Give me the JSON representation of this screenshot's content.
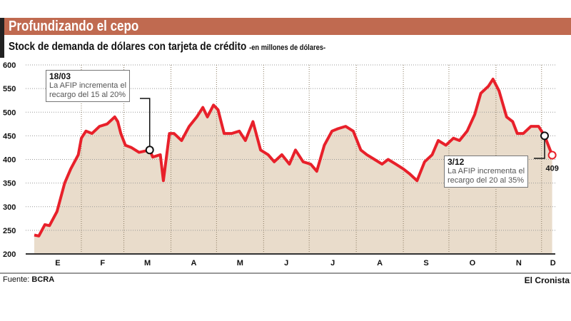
{
  "title": "Profundizando el cepo",
  "subtitle": "Stock de demanda de dólares con tarjeta de crédito",
  "unit": "-en millones de dólares-",
  "footer": {
    "source_label": "Fuente:",
    "source": "BCRA",
    "brand": "El Cronista"
  },
  "colors": {
    "header": "#c06a50",
    "line": "#e8202a",
    "fill": "#e9dccb"
  },
  "chart_data": {
    "type": "area",
    "ylim": [
      200,
      600
    ],
    "yticks": [
      200,
      250,
      300,
      350,
      400,
      450,
      500,
      550,
      600
    ],
    "xticks": [
      "E",
      "F",
      "M",
      "A",
      "M",
      "J",
      "J",
      "A",
      "S",
      "O",
      "N",
      "D"
    ],
    "grid": true,
    "points": [
      [
        "01/01",
        240
      ],
      [
        "04/01",
        238
      ],
      [
        "08/01",
        262
      ],
      [
        "11/01",
        260
      ],
      [
        "16/01",
        290
      ],
      [
        "21/01",
        350
      ],
      [
        "25/01",
        380
      ],
      [
        "30/01",
        410
      ],
      [
        "01/02",
        445
      ],
      [
        "04/02",
        460
      ],
      [
        "08/02",
        455
      ],
      [
        "13/02",
        470
      ],
      [
        "18/02",
        475
      ],
      [
        "23/02",
        490
      ],
      [
        "25/02",
        480
      ],
      [
        "27/02",
        455
      ],
      [
        "02/03",
        430
      ],
      [
        "06/03",
        425
      ],
      [
        "11/03",
        415
      ],
      [
        "18/03",
        420
      ],
      [
        "20/03",
        405
      ],
      [
        "25/03",
        410
      ],
      [
        "27/03",
        355
      ],
      [
        "31/03",
        455
      ],
      [
        "03/04",
        455
      ],
      [
        "08/04",
        440
      ],
      [
        "13/04",
        470
      ],
      [
        "18/04",
        490
      ],
      [
        "22/04",
        510
      ],
      [
        "25/04",
        490
      ],
      [
        "29/04",
        515
      ],
      [
        "02/05",
        505
      ],
      [
        "06/05",
        455
      ],
      [
        "11/05",
        455
      ],
      [
        "16/05",
        460
      ],
      [
        "20/05",
        440
      ],
      [
        "25/05",
        480
      ],
      [
        "30/05",
        420
      ],
      [
        "04/06",
        410
      ],
      [
        "08/06",
        395
      ],
      [
        "13/06",
        410
      ],
      [
        "18/06",
        390
      ],
      [
        "22/06",
        420
      ],
      [
        "27/06",
        395
      ],
      [
        "02/07",
        390
      ],
      [
        "06/07",
        375
      ],
      [
        "11/07",
        430
      ],
      [
        "16/07",
        460
      ],
      [
        "20/07",
        465
      ],
      [
        "25/07",
        470
      ],
      [
        "30/07",
        460
      ],
      [
        "04/08",
        420
      ],
      [
        "08/08",
        410
      ],
      [
        "13/08",
        400
      ],
      [
        "18/08",
        390
      ],
      [
        "22/08",
        400
      ],
      [
        "27/08",
        390
      ],
      [
        "01/09",
        380
      ],
      [
        "05/09",
        370
      ],
      [
        "10/09",
        355
      ],
      [
        "15/09",
        395
      ],
      [
        "20/09",
        410
      ],
      [
        "24/09",
        440
      ],
      [
        "29/09",
        430
      ],
      [
        "04/10",
        445
      ],
      [
        "08/10",
        440
      ],
      [
        "13/10",
        460
      ],
      [
        "18/10",
        495
      ],
      [
        "22/10",
        540
      ],
      [
        "27/10",
        555
      ],
      [
        "30/10",
        570
      ],
      [
        "03/11",
        545
      ],
      [
        "08/11",
        490
      ],
      [
        "12/11",
        480
      ],
      [
        "15/11",
        455
      ],
      [
        "19/11",
        455
      ],
      [
        "24/11",
        470
      ],
      [
        "29/11",
        470
      ],
      [
        "03/12",
        450
      ],
      [
        "08/12",
        409
      ]
    ],
    "annotations": [
      {
        "date": "18/03",
        "value": 420,
        "label": "18/03",
        "text1": "La AFIP incrementa el",
        "text2": "recargo del 15 al 20%"
      },
      {
        "date": "03/12",
        "value": 450,
        "label": "3/12",
        "text1": "La AFIP incrementa el",
        "text2": "recargo del 20 al 35%"
      }
    ],
    "last_value_label": "409"
  }
}
